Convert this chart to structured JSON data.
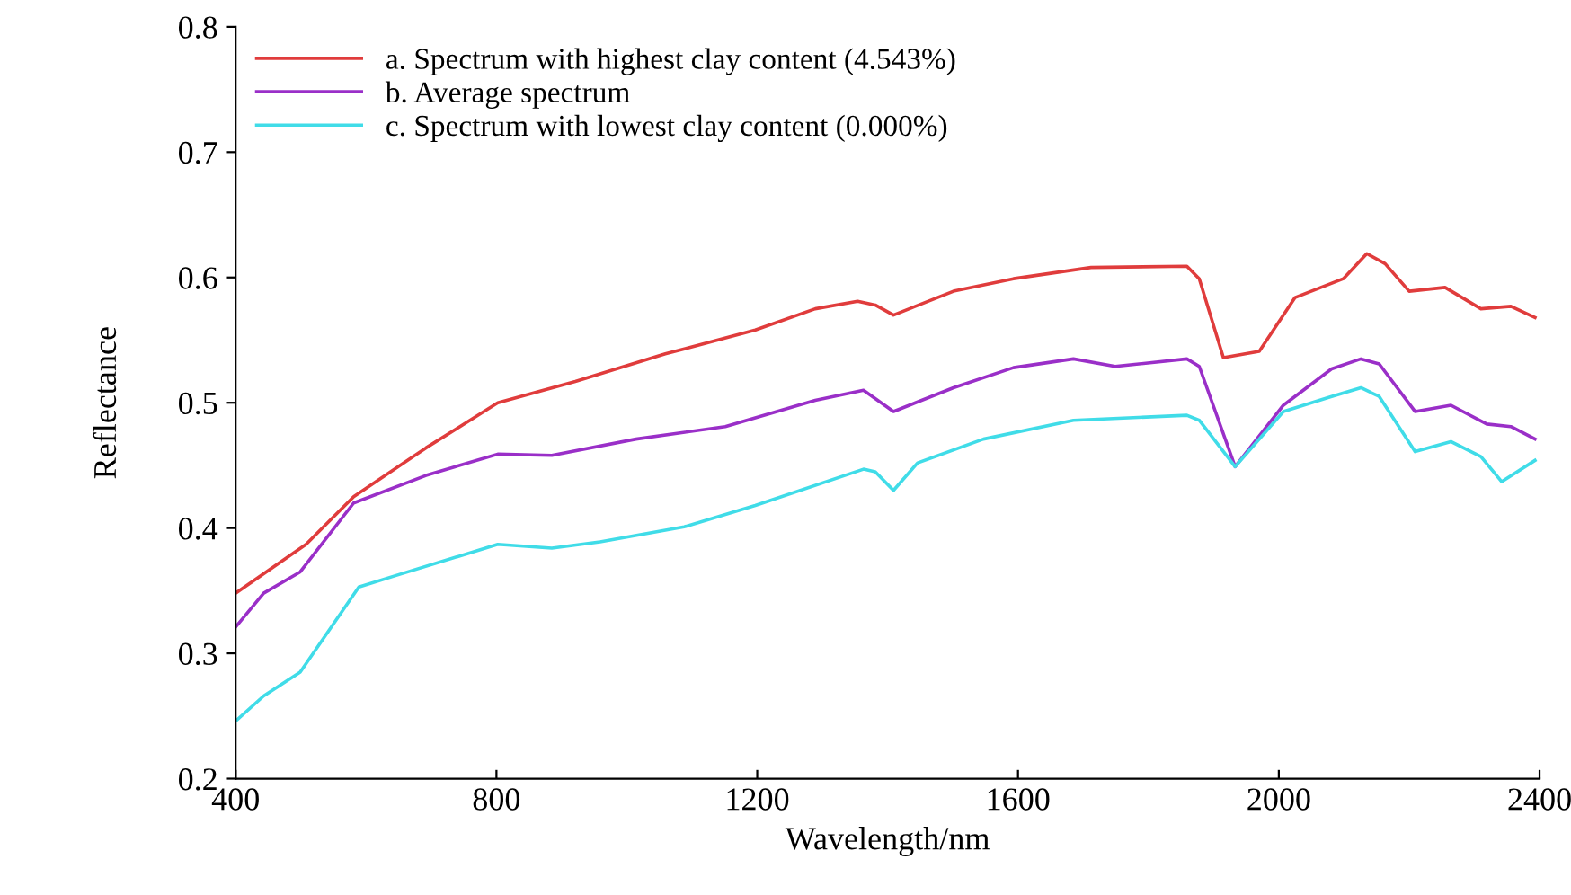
{
  "chart_data": {
    "type": "line",
    "xlabel": "Wavelength/nm",
    "ylabel": "Reflectance",
    "xlim": [
      400,
      2400
    ],
    "xticks": [
      400,
      800,
      1200,
      1600,
      2000,
      2400
    ],
    "ylim": [
      0.2,
      0.8
    ],
    "yticks": [
      0.2,
      0.3,
      0.4,
      0.5,
      0.6,
      0.7,
      0.8
    ],
    "grid": false,
    "legend": "top left",
    "marker": "none",
    "line_style": "solid",
    "series": [
      {
        "name": "a. Spectrum with highest clay content (4.543%)",
        "color": "#e03c3c",
        "x": [
          400,
          508,
          581,
          692,
          802,
          921,
          1059,
          1197,
          1289,
          1354,
          1381,
          1409,
          1501,
          1593,
          1712,
          1859,
          1878,
          1915,
          1970,
          2025,
          2099,
          2135,
          2163,
          2200,
          2255,
          2310,
          2356,
          2393
        ],
        "values": [
          0.348,
          0.387,
          0.425,
          0.464,
          0.5,
          0.517,
          0.539,
          0.558,
          0.575,
          0.581,
          0.578,
          0.57,
          0.589,
          0.599,
          0.608,
          0.609,
          0.599,
          0.536,
          0.541,
          0.584,
          0.599,
          0.619,
          0.611,
          0.589,
          0.592,
          0.575,
          0.577,
          0.568
        ]
      },
      {
        "name": "b. Average spectrum",
        "color": "#9a2fc8",
        "x": [
          400,
          443,
          499,
          581,
          692,
          802,
          885,
          1014,
          1151,
          1289,
          1363,
          1409,
          1501,
          1593,
          1685,
          1749,
          1859,
          1878,
          1933,
          2007,
          2081,
          2126,
          2154,
          2209,
          2264,
          2319,
          2356,
          2393
        ],
        "values": [
          0.321,
          0.348,
          0.365,
          0.42,
          0.442,
          0.459,
          0.458,
          0.471,
          0.481,
          0.502,
          0.51,
          0.493,
          0.512,
          0.528,
          0.535,
          0.529,
          0.535,
          0.529,
          0.449,
          0.498,
          0.527,
          0.535,
          0.531,
          0.493,
          0.498,
          0.483,
          0.481,
          0.471
        ]
      },
      {
        "name": "c. Spectrum with lowest clay content (0.000%)",
        "color": "#40dce8",
        "x": [
          400,
          443,
          499,
          589,
          645,
          802,
          885,
          959,
          1088,
          1197,
          1363,
          1381,
          1409,
          1446,
          1547,
          1685,
          1859,
          1878,
          1933,
          2007,
          2081,
          2126,
          2154,
          2209,
          2264,
          2310,
          2342,
          2393
        ],
        "values": [
          0.246,
          0.266,
          0.285,
          0.353,
          0.362,
          0.387,
          0.384,
          0.389,
          0.401,
          0.418,
          0.447,
          0.445,
          0.43,
          0.452,
          0.471,
          0.486,
          0.49,
          0.486,
          0.449,
          0.493,
          0.505,
          0.512,
          0.505,
          0.461,
          0.469,
          0.457,
          0.437,
          0.454
        ]
      }
    ]
  }
}
